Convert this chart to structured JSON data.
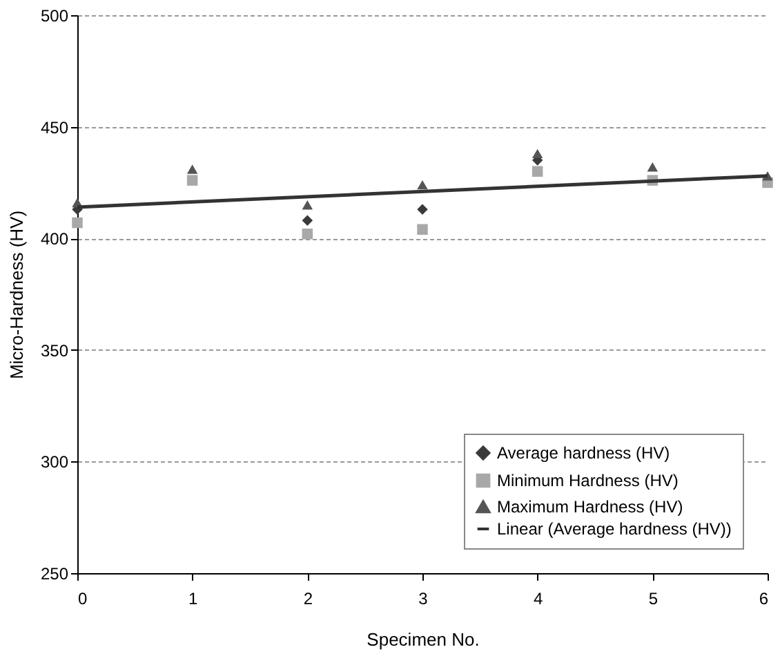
{
  "chart_data": {
    "type": "scatter",
    "xlabel": "Specimen No.",
    "ylabel": "Micro-Hardness (HV)",
    "x": [
      0,
      1,
      2,
      3,
      4,
      5,
      6
    ],
    "series": [
      {
        "name": "Average hardness (HV)",
        "color": "#3a3a3a",
        "marker": "diamond",
        "values": [
          413,
          null,
          408,
          413,
          435,
          null,
          null
        ]
      },
      {
        "name": "Minimum Hardness (HV)",
        "color": "#a8a8a8",
        "marker": "square",
        "values": [
          407,
          426,
          402,
          404,
          430,
          426,
          425
        ]
      },
      {
        "name": "Maximum Hardness (HV)",
        "color": "#555555",
        "marker": "triangle",
        "values": [
          416,
          431,
          415,
          424,
          438,
          432,
          428
        ]
      },
      {
        "name": "Linear (Average hardness (HV))",
        "type": "line",
        "color": "#333333",
        "marker": "none",
        "x": [
          0,
          6
        ],
        "values": [
          414,
          428
        ]
      }
    ],
    "xlim": [
      0,
      6
    ],
    "xticks": [
      0,
      1,
      2,
      3,
      4,
      5,
      6
    ],
    "ylim": [
      250,
      500
    ],
    "yticks": [
      250,
      300,
      350,
      400,
      450,
      500
    ],
    "grid": "y",
    "legend": "bottom right"
  }
}
